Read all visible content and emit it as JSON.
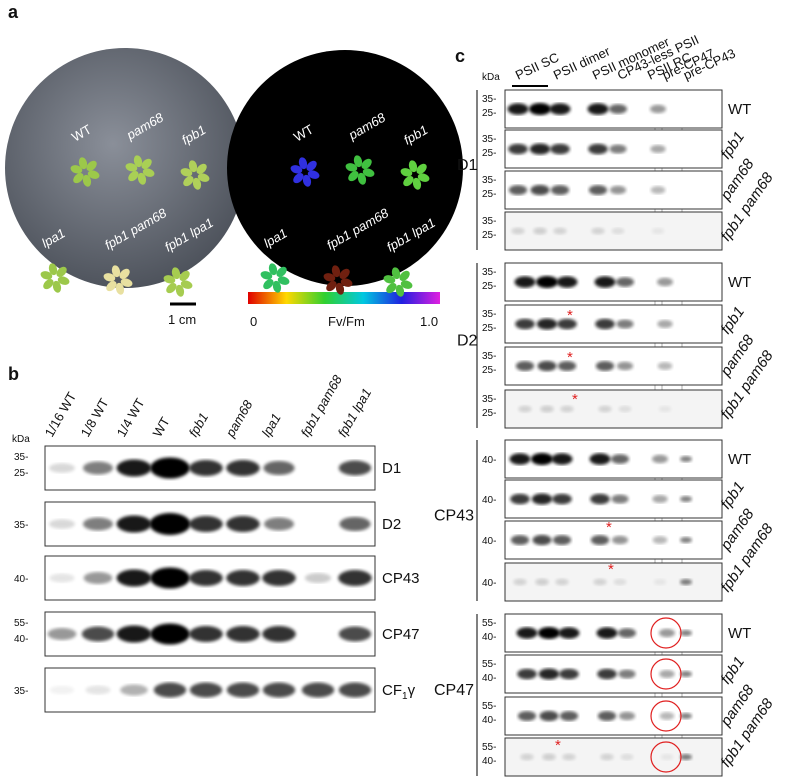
{
  "panel_a": {
    "label": "a",
    "plate_labels": [
      "WT",
      "pam68",
      "fpb1",
      "lpa1",
      "fpb1 pam68",
      "fpb1 lpa1"
    ],
    "scale_bar": "1 cm",
    "colorbar": {
      "min": "0",
      "title": "Fv/Fm",
      "max": "1.0"
    }
  },
  "panel_b": {
    "label": "b",
    "unit": "kDa",
    "lanes": [
      "1/16 WT",
      "1/8 WT",
      "1/4 WT",
      "WT",
      "fpb1",
      "pam68",
      "lpa1",
      "fpb1 pam68",
      "fpb1 lpa1"
    ],
    "blots": [
      {
        "name": "D1",
        "markers": [
          "35-",
          "25-"
        ]
      },
      {
        "name": "D2",
        "markers": [
          "35-"
        ]
      },
      {
        "name": "CP43",
        "markers": [
          "40-"
        ]
      },
      {
        "name": "CP47",
        "markers": [
          "55-",
          "40-"
        ]
      },
      {
        "name": "CF",
        "subscript": "1",
        "suffix": "γ",
        "markers": [
          "35-"
        ]
      }
    ]
  },
  "panel_c": {
    "label": "c",
    "unit": "kDa",
    "complexes": [
      "PSII SC",
      "PSII dimer",
      "PSII monomer",
      "CP43-less PSII",
      "PSII RC",
      "pre-CP47",
      "pre-CP43"
    ],
    "genotypes": [
      "WT",
      "fpb1",
      "pam68",
      "fpb1 pam68"
    ],
    "asterisk": "*",
    "groups": [
      {
        "name": "D1",
        "markers": [
          "35-",
          "25-"
        ]
      },
      {
        "name": "D2",
        "markers": [
          "35-",
          "25-"
        ]
      },
      {
        "name": "CP43",
        "markers": [
          "40-"
        ]
      },
      {
        "name": "CP47",
        "markers": [
          "55-",
          "40-"
        ]
      }
    ]
  }
}
